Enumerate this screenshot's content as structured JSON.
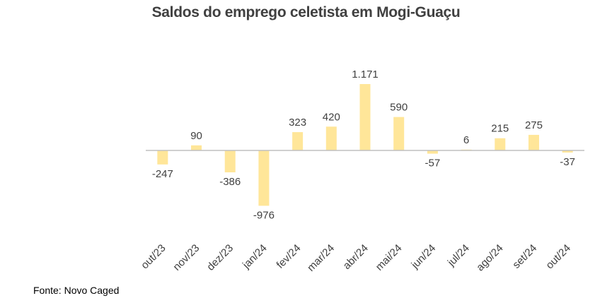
{
  "chart_data": {
    "type": "bar",
    "title": "Saldos do emprego celetista em Mogi-Guaçu",
    "categories": [
      "out/23",
      "nov/23",
      "dez/23",
      "jan/24",
      "fev/24",
      "mar/24",
      "abr/24",
      "mai/24",
      "jun/24",
      "jul/24",
      "ago/24",
      "set/24",
      "out/24"
    ],
    "values": [
      -247,
      90,
      -386,
      -976,
      323,
      420,
      1171,
      590,
      -57,
      6,
      215,
      275,
      -37
    ],
    "data_labels": [
      "-247",
      "90",
      "-386",
      "-976",
      "323",
      "420",
      "1.171",
      "590",
      "-57",
      "6",
      "215",
      "275",
      "-37"
    ],
    "xlabel": "",
    "ylabel": "",
    "ylim": [
      -1000,
      1200
    ],
    "grid": false,
    "legend": "none",
    "bar_color": "#FFE699",
    "axis_color": "#BFBFBF"
  },
  "source": "Fonte: Novo Caged"
}
